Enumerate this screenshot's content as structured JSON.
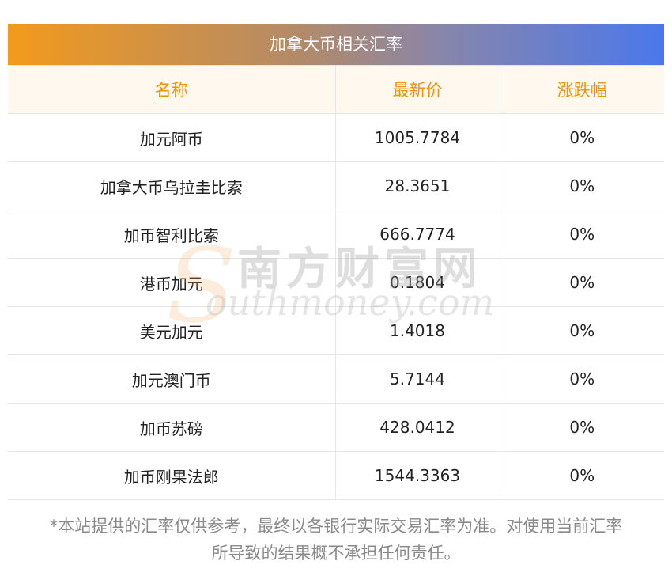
{
  "title": "加拿大币相关汇率",
  "columns": [
    "名称",
    "最新价",
    "涨跌幅"
  ],
  "rows": [
    {
      "name": "加元阿币",
      "price": "1005.7784",
      "change": "0%"
    },
    {
      "name": "加拿大币乌拉圭比索",
      "price": "28.3651",
      "change": "0%"
    },
    {
      "name": "加币智利比索",
      "price": "666.7774",
      "change": "0%"
    },
    {
      "name": "港币加元",
      "price": "0.1804",
      "change": "0%"
    },
    {
      "name": "美元加元",
      "price": "1.4018",
      "change": "0%"
    },
    {
      "name": "加元澳门币",
      "price": "5.7144",
      "change": "0%"
    },
    {
      "name": "加币苏磅",
      "price": "428.0412",
      "change": "0%"
    },
    {
      "name": "加币刚果法郎",
      "price": "1544.3363",
      "change": "0%"
    }
  ],
  "footnote_line1": "*本站提供的汇率仅供参考，最终以各银行实际交易汇率为准。对使用当前汇率",
  "footnote_line2": "所导致的结果概不承担任何责任。",
  "watermark": {
    "cn": "南方财富网",
    "en": "outhmoney.com",
    "s": "S"
  },
  "colors": {
    "header_text": "#f0920f",
    "title_start": "#f39a1c",
    "title_end": "#4a78ec"
  }
}
